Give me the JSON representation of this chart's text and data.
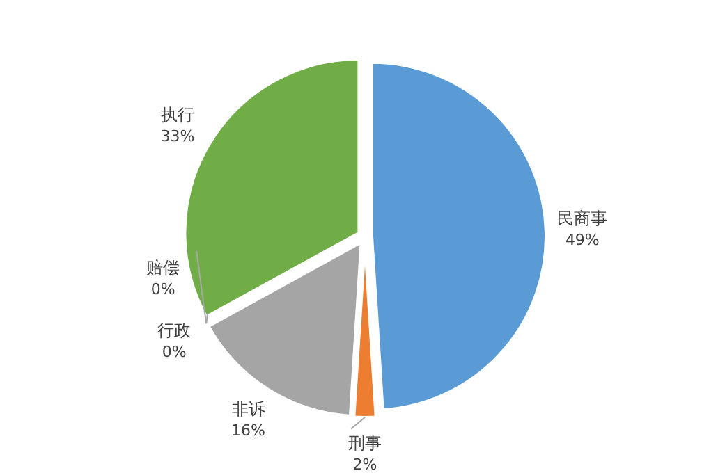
{
  "chart_data": {
    "type": "pie",
    "categories": [
      "民商事",
      "刑事",
      "非诉",
      "行政",
      "赔偿",
      "执行"
    ],
    "values": [
      49,
      2,
      16,
      0,
      0,
      33
    ],
    "value_labels": [
      "49%",
      "2%",
      "16%",
      "0%",
      "0%",
      "33%"
    ],
    "colors": [
      "#5b9bd5",
      "#ed7d31",
      "#a5a5a5",
      "#ffc000",
      "#4472c4",
      "#70ad47"
    ]
  }
}
